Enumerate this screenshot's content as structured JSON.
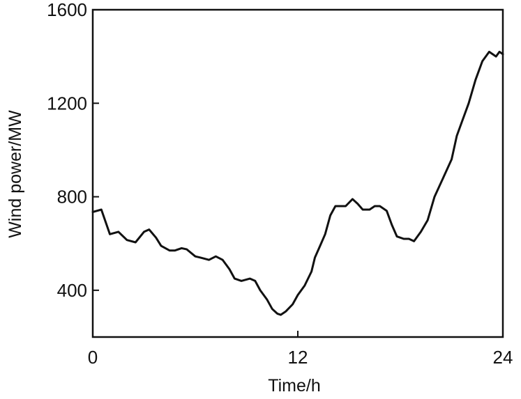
{
  "chart_data": {
    "type": "line",
    "xlabel": "Time/h",
    "ylabel": "Wind power/MW",
    "xlim": [
      0,
      24
    ],
    "ylim": [
      200,
      1600
    ],
    "xticks": [
      0,
      12,
      24
    ],
    "yticks": [
      400,
      800,
      1200,
      1600
    ],
    "grid": false,
    "series": [
      {
        "color": "#111111",
        "x": [
          0.0,
          0.5,
          1.0,
          1.5,
          2.0,
          2.5,
          3.0,
          3.3,
          3.7,
          4.0,
          4.5,
          4.8,
          5.2,
          5.5,
          6.0,
          6.3,
          6.8,
          7.2,
          7.6,
          8.0,
          8.3,
          8.7,
          9.2,
          9.5,
          9.8,
          10.2,
          10.5,
          10.8,
          11.0,
          11.3,
          11.7,
          12.0,
          12.4,
          12.8,
          13.0,
          13.3,
          13.6,
          13.9,
          14.2,
          14.5,
          14.8,
          15.2,
          15.5,
          15.8,
          16.2,
          16.5,
          16.8,
          17.2,
          17.5,
          17.8,
          18.2,
          18.5,
          18.8,
          19.2,
          19.6,
          20.0,
          20.5,
          21.0,
          21.3,
          21.6,
          22.0,
          22.4,
          22.8,
          23.2,
          23.6,
          23.8,
          24.0
        ],
        "y": [
          735,
          745,
          640,
          650,
          615,
          605,
          650,
          660,
          625,
          590,
          570,
          570,
          580,
          575,
          545,
          540,
          530,
          545,
          530,
          490,
          450,
          440,
          450,
          440,
          400,
          360,
          320,
          300,
          295,
          310,
          340,
          380,
          420,
          480,
          540,
          590,
          640,
          720,
          760,
          760,
          760,
          790,
          770,
          745,
          745,
          760,
          760,
          740,
          680,
          630,
          620,
          620,
          610,
          650,
          700,
          800,
          880,
          960,
          1060,
          1120,
          1200,
          1300,
          1380,
          1420,
          1400,
          1420,
          1410
        ]
      }
    ]
  }
}
